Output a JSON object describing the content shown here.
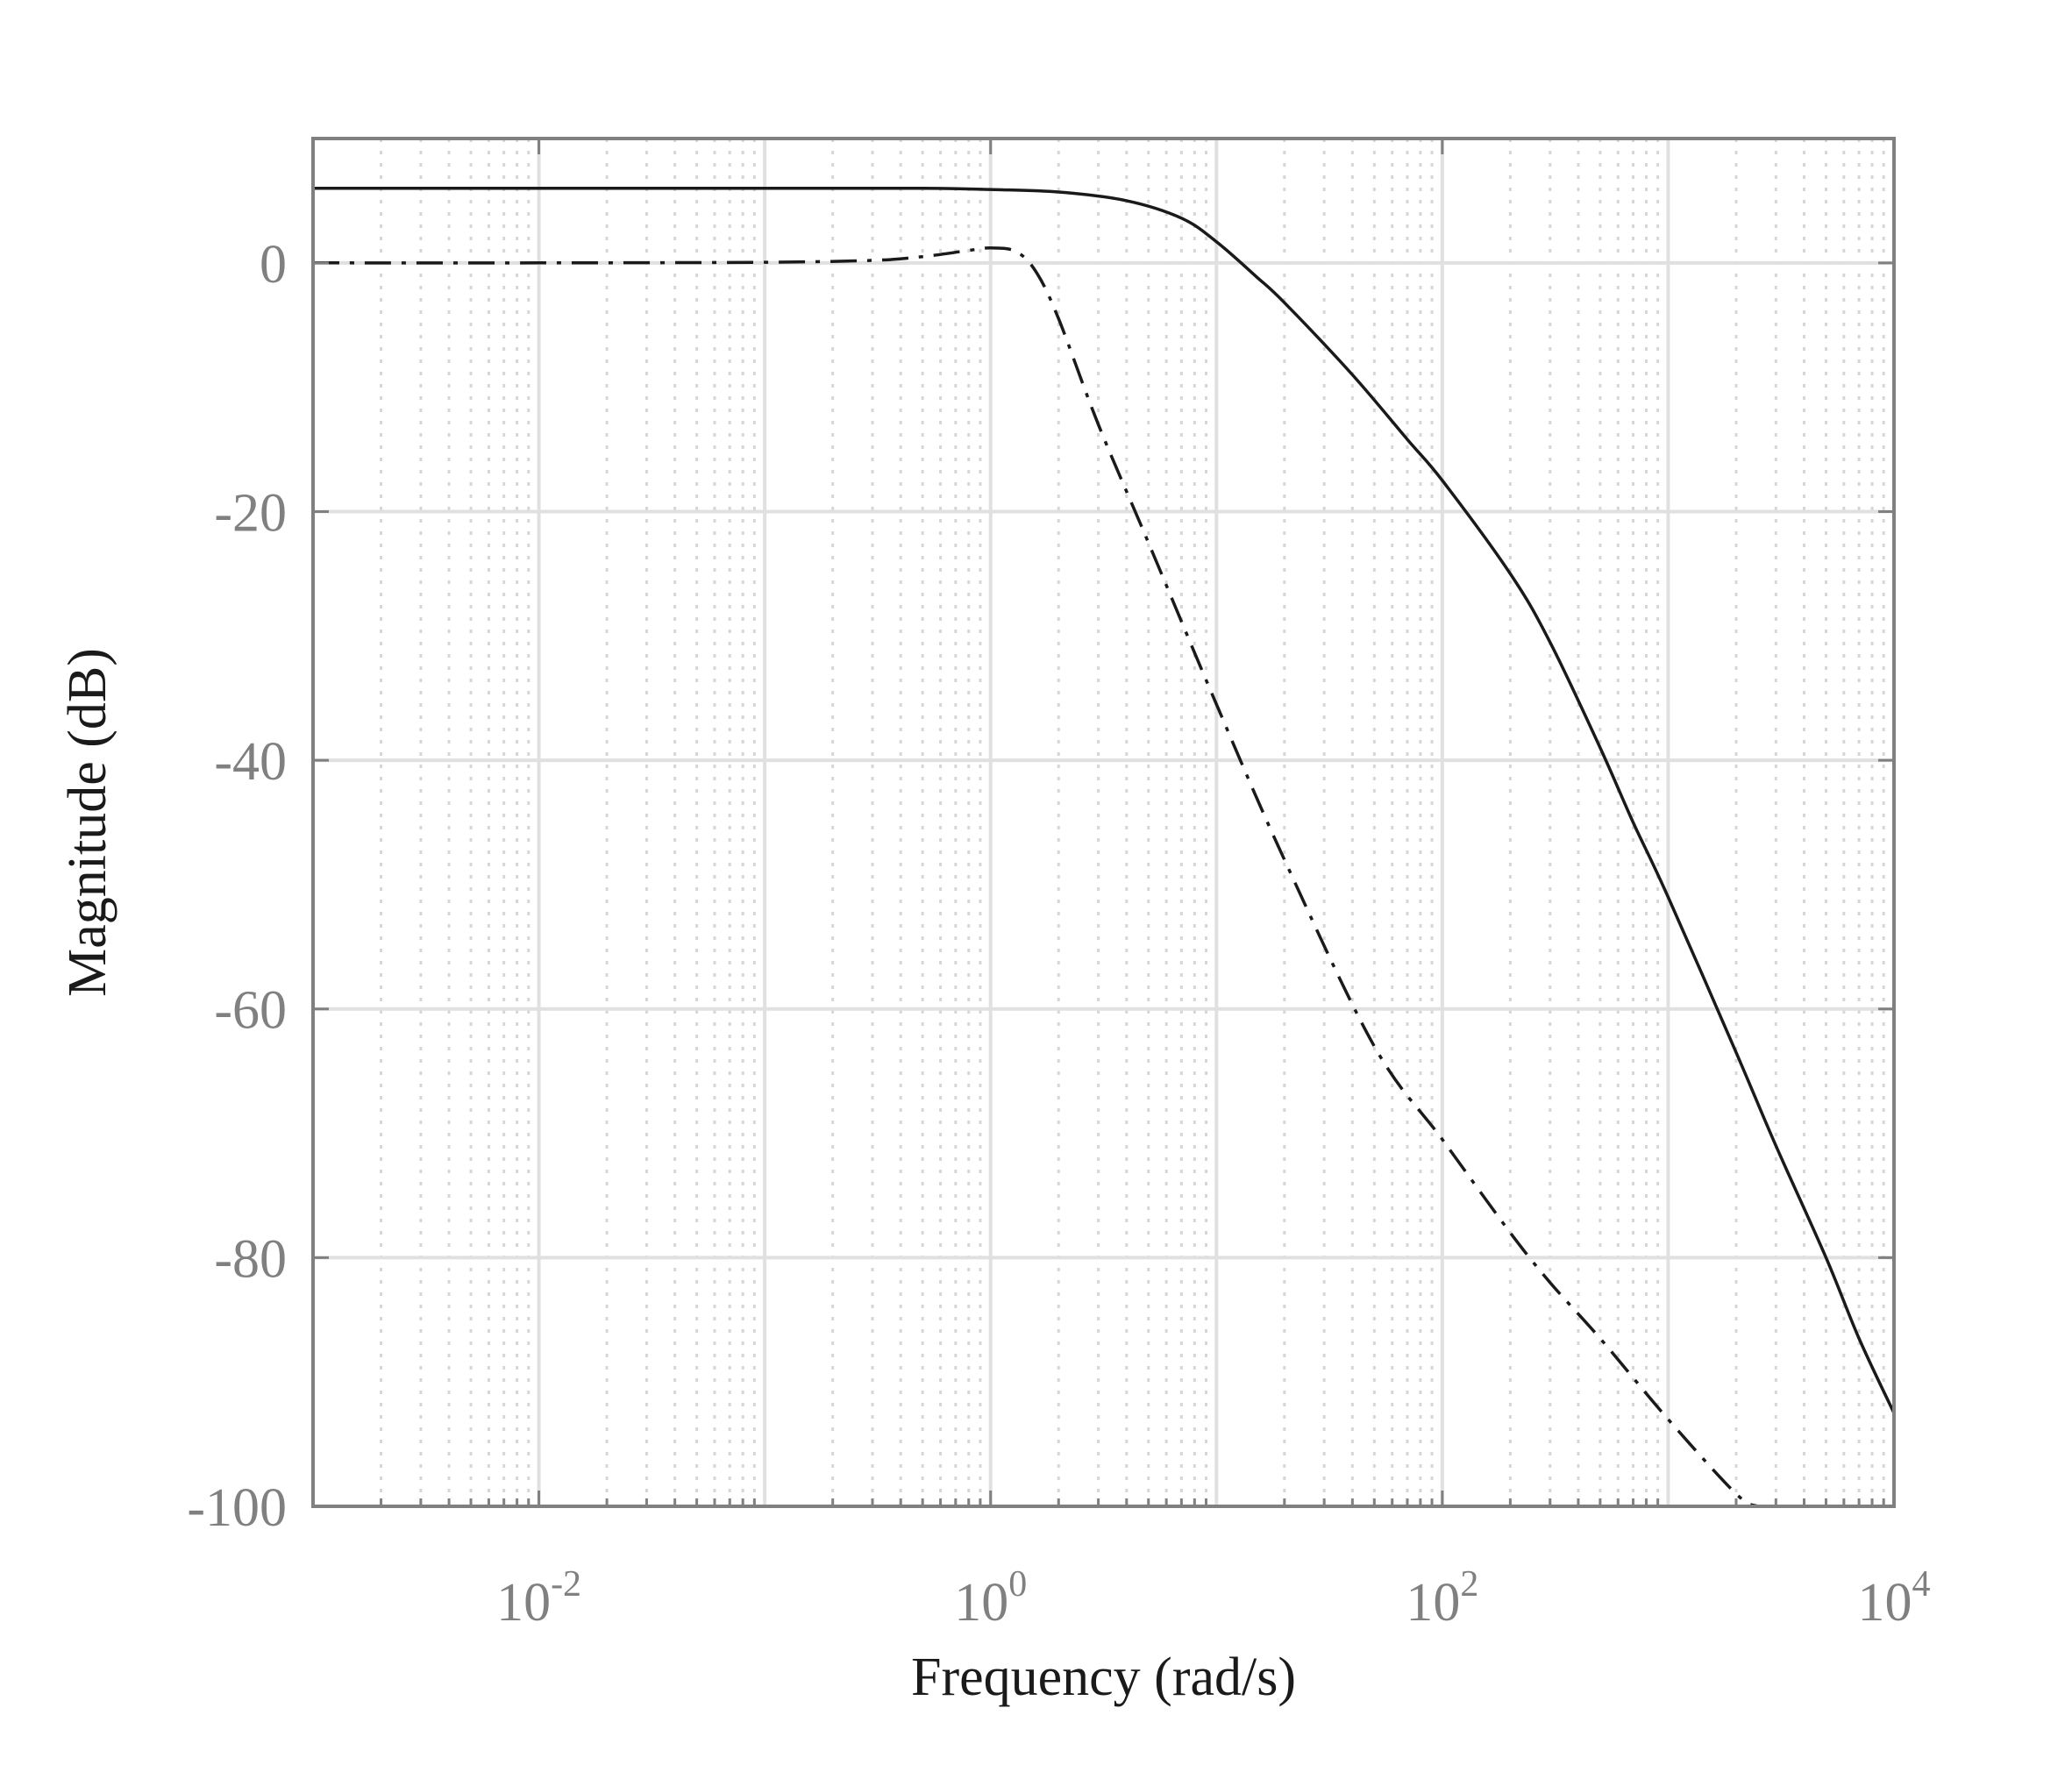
{
  "chart_data": {
    "type": "line",
    "title": "",
    "xlabel": "Frequency  (rad/s)",
    "ylabel": "Magnitude (dB)",
    "xscale": "log",
    "xlim": [
      0.001,
      10000
    ],
    "ylim": [
      -100,
      10
    ],
    "grid": "on (major and minor)",
    "legend": "none",
    "x_ticks": [
      {
        "value": 0.01,
        "base": "10",
        "exp": "-2"
      },
      {
        "value": 1,
        "base": "10",
        "exp": "0"
      },
      {
        "value": 100,
        "base": "10",
        "exp": "2"
      },
      {
        "value": 10000,
        "base": "10",
        "exp": "4"
      }
    ],
    "y_ticks": [
      {
        "value": 0,
        "label": "0"
      },
      {
        "value": -20,
        "label": "-20"
      },
      {
        "value": -40,
        "label": "-40"
      },
      {
        "value": -60,
        "label": "-60"
      },
      {
        "value": -80,
        "label": "-80"
      },
      {
        "value": -100,
        "label": "-100"
      }
    ],
    "series": [
      {
        "style": "solid",
        "color": "#1a1a1a",
        "x": [
          0.001,
          0.01,
          0.1,
          0.5,
          1,
          2,
          4,
          7,
          10,
          15,
          20,
          40,
          70,
          100,
          200,
          300,
          500,
          700,
          1000,
          2000,
          3000,
          5000,
          7000,
          10000
        ],
        "y": [
          6.0,
          6.0,
          6.0,
          6.0,
          5.9,
          5.7,
          5.0,
          3.6,
          1.7,
          -1.1,
          -3.2,
          -9.0,
          -14.2,
          -17.5,
          -25.0,
          -30.5,
          -39.0,
          -45.0,
          -51.0,
          -63.5,
          -71.0,
          -80.0,
          -86.5,
          -92.5
        ]
      },
      {
        "style": "dash-dot",
        "color": "#1a1a1a",
        "x": [
          0.001,
          0.01,
          0.1,
          0.3,
          0.5,
          0.8,
          1,
          1.3,
          1.6,
          2,
          3,
          5,
          10,
          20,
          50,
          100,
          200,
          300,
          500,
          1000,
          2000,
          2500
        ],
        "y": [
          0.0,
          0.0,
          0.05,
          0.2,
          0.5,
          1.0,
          1.2,
          0.9,
          -0.8,
          -4.5,
          -13.0,
          -22.5,
          -35.5,
          -48.0,
          -63.0,
          -70.5,
          -78.0,
          -82.0,
          -86.5,
          -93.0,
          -99.0,
          -100
        ]
      }
    ]
  }
}
